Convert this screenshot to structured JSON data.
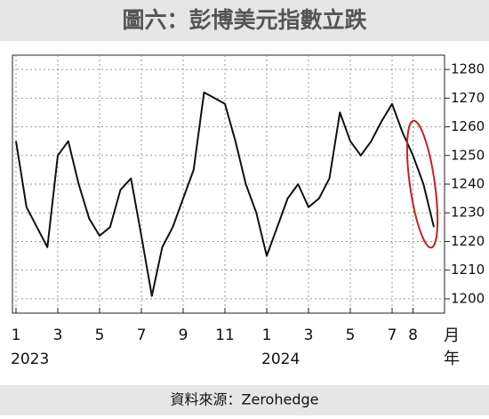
{
  "chart_data": {
    "type": "line",
    "title": "圖六：彭博美元指數立跌",
    "source": "資料來源：Zerohedge",
    "x_unit": "月",
    "x_year_unit": "年",
    "years": [
      "2023",
      "2024"
    ],
    "categories": [
      "1",
      null,
      null,
      null,
      "3",
      null,
      null,
      null,
      "5",
      null,
      null,
      null,
      "7",
      null,
      null,
      null,
      "9",
      null,
      null,
      null,
      "11",
      null,
      null,
      null,
      "1",
      null,
      null,
      null,
      "3",
      null,
      null,
      null,
      "5",
      null,
      null,
      null,
      "7",
      null,
      "8",
      null,
      null
    ],
    "series": [
      {
        "name": "彭博美元指數",
        "color": "#111111",
        "values": [
          1255,
          1232,
          1225,
          1218,
          1250,
          1255,
          1240,
          1228,
          1222,
          1225,
          1238,
          1242,
          1222,
          1201,
          1218,
          1225,
          1235,
          1245,
          1272,
          1270,
          1268,
          1255,
          1240,
          1230,
          1215,
          1225,
          1235,
          1240,
          1232,
          1235,
          1242,
          1265,
          1255,
          1250,
          1255,
          1262,
          1268,
          1258,
          1250,
          1240,
          1225
        ]
      }
    ],
    "ylim": [
      1195,
      1285
    ],
    "yticks": [
      1200,
      1210,
      1220,
      1230,
      1240,
      1250,
      1260,
      1270,
      1280
    ],
    "grid": true
  }
}
